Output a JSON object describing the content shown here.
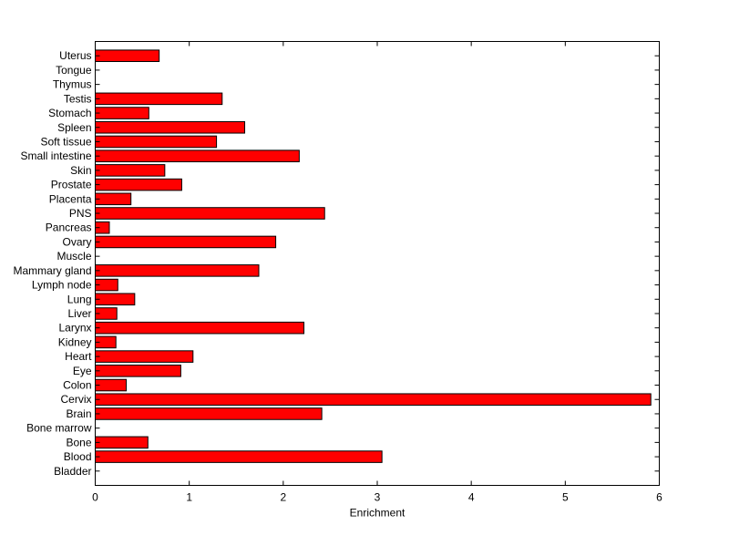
{
  "chart_data": {
    "type": "bar",
    "orientation": "horizontal",
    "title": "",
    "xlabel": "Enrichment",
    "ylabel": "",
    "xlim": [
      0,
      6
    ],
    "xticks": [
      0,
      1,
      2,
      3,
      4,
      5,
      6
    ],
    "grid": false,
    "legend": "none",
    "bar_color": "#ff0000",
    "bar_edge_color": "#000000",
    "categories": [
      "Bladder",
      "Blood",
      "Bone",
      "Bone marrow",
      "Brain",
      "Cervix",
      "Colon",
      "Eye",
      "Heart",
      "Kidney",
      "Larynx",
      "Liver",
      "Lung",
      "Lymph node",
      "Mammary gland",
      "Muscle",
      "Ovary",
      "Pancreas",
      "PNS",
      "Placenta",
      "Prostate",
      "Skin",
      "Small intestine",
      "Soft tissue",
      "Spleen",
      "Stomach",
      "Testis",
      "Thymus",
      "Tongue",
      "Uterus"
    ],
    "values": [
      0,
      3.05,
      0.56,
      0,
      2.41,
      5.91,
      0.33,
      0.91,
      1.04,
      0.22,
      2.22,
      0.23,
      0.42,
      0.24,
      1.74,
      0,
      1.92,
      0.15,
      2.44,
      0.38,
      0.92,
      0.74,
      2.17,
      1.29,
      1.59,
      0.57,
      1.35,
      0,
      0,
      0.68
    ]
  }
}
